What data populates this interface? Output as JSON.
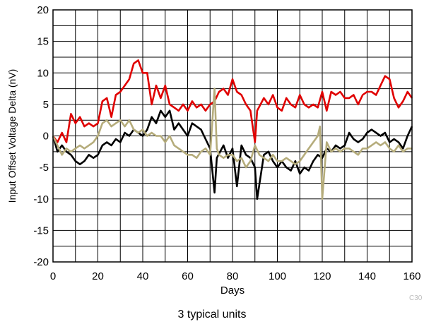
{
  "chart_data": {
    "type": "line",
    "title": "",
    "xlabel": "Days",
    "ylabel": "Input Offset Voltage Delta (nV)",
    "xlim": [
      0,
      160
    ],
    "ylim": [
      -20,
      20
    ],
    "xticks": [
      0,
      20,
      40,
      60,
      80,
      100,
      120,
      140,
      160
    ],
    "yticks": [
      -20,
      -15,
      -10,
      -5,
      0,
      5,
      10,
      15,
      20
    ],
    "x_minor_step": 10,
    "y_minor_step": 2.5,
    "grid": true,
    "series": [
      {
        "color": "#e00000",
        "points": [
          [
            0,
            0
          ],
          [
            2,
            -1
          ],
          [
            4,
            0.5
          ],
          [
            6,
            -1
          ],
          [
            8,
            3.5
          ],
          [
            10,
            2
          ],
          [
            12,
            3
          ],
          [
            14,
            1.5
          ],
          [
            16,
            2
          ],
          [
            18,
            1.5
          ],
          [
            20,
            2
          ],
          [
            22,
            5.5
          ],
          [
            24,
            6
          ],
          [
            26,
            3
          ],
          [
            28,
            6.5
          ],
          [
            30,
            7
          ],
          [
            32,
            8
          ],
          [
            34,
            9
          ],
          [
            36,
            11.5
          ],
          [
            38,
            12
          ],
          [
            40,
            10
          ],
          [
            42,
            10
          ],
          [
            44,
            5
          ],
          [
            46,
            8
          ],
          [
            48,
            6
          ],
          [
            50,
            8
          ],
          [
            52,
            5
          ],
          [
            54,
            4.5
          ],
          [
            56,
            4
          ],
          [
            58,
            5
          ],
          [
            60,
            4
          ],
          [
            62,
            5.5
          ],
          [
            64,
            4.5
          ],
          [
            66,
            5
          ],
          [
            68,
            4
          ],
          [
            70,
            5
          ],
          [
            72,
            5.5
          ],
          [
            74,
            7
          ],
          [
            76,
            7.5
          ],
          [
            78,
            6.5
          ],
          [
            80,
            9
          ],
          [
            82,
            7
          ],
          [
            84,
            6.5
          ],
          [
            86,
            5
          ],
          [
            88,
            4
          ],
          [
            90,
            -1
          ],
          [
            91,
            4
          ],
          [
            94,
            6
          ],
          [
            96,
            5
          ],
          [
            98,
            6.5
          ],
          [
            100,
            4.5
          ],
          [
            102,
            4
          ],
          [
            104,
            6
          ],
          [
            106,
            5
          ],
          [
            108,
            4.5
          ],
          [
            110,
            6.5
          ],
          [
            112,
            5
          ],
          [
            114,
            4.5
          ],
          [
            116,
            5
          ],
          [
            118,
            4.5
          ],
          [
            120,
            7
          ],
          [
            122,
            4
          ],
          [
            124,
            7
          ],
          [
            126,
            6.5
          ],
          [
            128,
            7
          ],
          [
            130,
            6
          ],
          [
            132,
            6
          ],
          [
            134,
            6.5
          ],
          [
            136,
            5
          ],
          [
            138,
            6.5
          ],
          [
            140,
            7
          ],
          [
            142,
            7
          ],
          [
            144,
            6.5
          ],
          [
            146,
            8
          ],
          [
            148,
            9.5
          ],
          [
            150,
            9
          ],
          [
            152,
            6
          ],
          [
            154,
            4.5
          ],
          [
            156,
            5.5
          ],
          [
            158,
            7
          ],
          [
            160,
            6
          ]
        ]
      },
      {
        "color": "#000000",
        "points": [
          [
            0,
            0
          ],
          [
            2,
            -2.5
          ],
          [
            4,
            -1.5
          ],
          [
            6,
            -2.5
          ],
          [
            8,
            -3
          ],
          [
            10,
            -4
          ],
          [
            12,
            -4.5
          ],
          [
            14,
            -4
          ],
          [
            16,
            -3
          ],
          [
            18,
            -3.5
          ],
          [
            20,
            -3
          ],
          [
            22,
            -1.5
          ],
          [
            24,
            -1
          ],
          [
            26,
            -1.5
          ],
          [
            28,
            -0.5
          ],
          [
            30,
            -1
          ],
          [
            32,
            0.5
          ],
          [
            34,
            0
          ],
          [
            36,
            1
          ],
          [
            38,
            0.5
          ],
          [
            40,
            0
          ],
          [
            42,
            1
          ],
          [
            44,
            3
          ],
          [
            46,
            2
          ],
          [
            48,
            4
          ],
          [
            50,
            3
          ],
          [
            52,
            4
          ],
          [
            54,
            1
          ],
          [
            56,
            2
          ],
          [
            58,
            1
          ],
          [
            60,
            0
          ],
          [
            62,
            2
          ],
          [
            64,
            1.5
          ],
          [
            66,
            1
          ],
          [
            68,
            -0.5
          ],
          [
            70,
            -2
          ],
          [
            72,
            -9
          ],
          [
            73,
            -3.5
          ],
          [
            76,
            -1.5
          ],
          [
            78,
            -3.5
          ],
          [
            80,
            -2
          ],
          [
            82,
            -8
          ],
          [
            84,
            -1.5
          ],
          [
            86,
            -3
          ],
          [
            88,
            -3.5
          ],
          [
            90,
            -5
          ],
          [
            91,
            -10
          ],
          [
            94,
            -3
          ],
          [
            96,
            -2.5
          ],
          [
            98,
            -4
          ],
          [
            100,
            -5
          ],
          [
            102,
            -4
          ],
          [
            104,
            -5
          ],
          [
            106,
            -5.5
          ],
          [
            108,
            -4
          ],
          [
            110,
            -6
          ],
          [
            112,
            -5
          ],
          [
            114,
            -5.5
          ],
          [
            116,
            -4
          ],
          [
            118,
            -3
          ],
          [
            120,
            -3.5
          ],
          [
            122,
            -2
          ],
          [
            124,
            -2.5
          ],
          [
            126,
            -1.5
          ],
          [
            128,
            -2
          ],
          [
            130,
            -1.5
          ],
          [
            132,
            0.5
          ],
          [
            134,
            -0.5
          ],
          [
            136,
            -1
          ],
          [
            138,
            -0.5
          ],
          [
            140,
            0.5
          ],
          [
            142,
            1
          ],
          [
            144,
            0.5
          ],
          [
            146,
            0
          ],
          [
            148,
            0.5
          ],
          [
            150,
            -1
          ],
          [
            152,
            -0.5
          ],
          [
            154,
            -1
          ],
          [
            156,
            -2
          ],
          [
            158,
            0
          ],
          [
            160,
            1.5
          ]
        ]
      },
      {
        "color": "#b5ac7b",
        "points": [
          [
            0,
            0
          ],
          [
            2,
            -1.5
          ],
          [
            4,
            -3
          ],
          [
            6,
            -2
          ],
          [
            8,
            -2.5
          ],
          [
            10,
            -2
          ],
          [
            12,
            -1.5
          ],
          [
            14,
            -2
          ],
          [
            16,
            -1.5
          ],
          [
            18,
            -1
          ],
          [
            20,
            0
          ],
          [
            22,
            2
          ],
          [
            24,
            2.5
          ],
          [
            26,
            1.5
          ],
          [
            28,
            2
          ],
          [
            30,
            2.5
          ],
          [
            32,
            1.5
          ],
          [
            34,
            2.5
          ],
          [
            36,
            1
          ],
          [
            38,
            0.5
          ],
          [
            40,
            1
          ],
          [
            42,
            0
          ],
          [
            44,
            0.5
          ],
          [
            46,
            0
          ],
          [
            48,
            0
          ],
          [
            50,
            -1
          ],
          [
            52,
            0
          ],
          [
            54,
            -1.5
          ],
          [
            56,
            -2
          ],
          [
            58,
            -2.5
          ],
          [
            60,
            -3
          ],
          [
            62,
            -3
          ],
          [
            64,
            -3.5
          ],
          [
            66,
            -2.5
          ],
          [
            68,
            -2
          ],
          [
            70,
            -3
          ],
          [
            72,
            7.5
          ],
          [
            73,
            -2
          ],
          [
            74,
            -3
          ],
          [
            76,
            -3.5
          ],
          [
            78,
            -3
          ],
          [
            80,
            -3
          ],
          [
            82,
            -4
          ],
          [
            84,
            -3.5
          ],
          [
            86,
            -5
          ],
          [
            88,
            -4
          ],
          [
            90,
            -1.5
          ],
          [
            92,
            -3
          ],
          [
            94,
            -3.5
          ],
          [
            96,
            -4
          ],
          [
            98,
            -3
          ],
          [
            100,
            -4
          ],
          [
            102,
            -4
          ],
          [
            104,
            -3.5
          ],
          [
            106,
            -4
          ],
          [
            108,
            -4.5
          ],
          [
            110,
            -4
          ],
          [
            112,
            -3
          ],
          [
            114,
            -2
          ],
          [
            116,
            -1
          ],
          [
            118,
            0
          ],
          [
            119,
            1.5
          ],
          [
            120,
            -10
          ],
          [
            122,
            -1
          ],
          [
            124,
            -2.5
          ],
          [
            126,
            -2
          ],
          [
            128,
            -2.5
          ],
          [
            130,
            -2
          ],
          [
            132,
            -2
          ],
          [
            134,
            -2.5
          ],
          [
            136,
            -3
          ],
          [
            138,
            -2
          ],
          [
            140,
            -2
          ],
          [
            142,
            -1.5
          ],
          [
            144,
            -1
          ],
          [
            146,
            -1.5
          ],
          [
            148,
            -1
          ],
          [
            150,
            -2
          ],
          [
            152,
            -2.5
          ],
          [
            154,
            -1.5
          ],
          [
            156,
            -2.5
          ],
          [
            158,
            -2
          ],
          [
            160,
            -2
          ]
        ]
      }
    ]
  },
  "caption": "3 typical units",
  "code": "C30"
}
